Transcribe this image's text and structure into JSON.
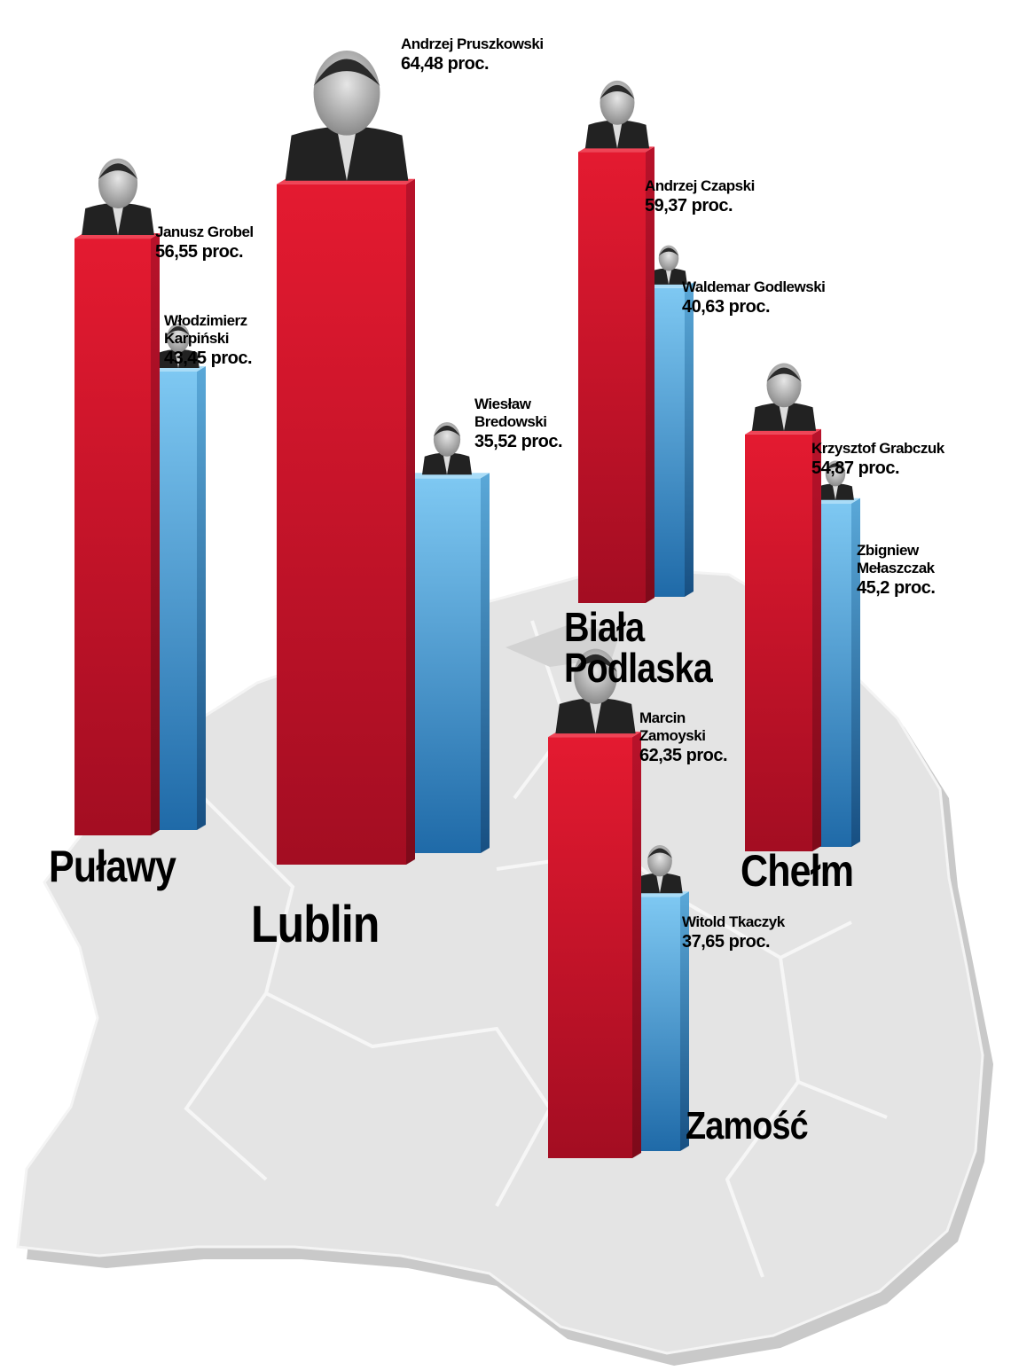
{
  "chart_data": {
    "type": "bar",
    "unit": "proc.",
    "colors": {
      "winner": "#c8102e",
      "runner_up": "#3a8fcc",
      "map": "#e3e3e3"
    },
    "cities": [
      {
        "name": "Puławy",
        "candidates": [
          {
            "name": "Janusz Grobel",
            "percent": 56.55,
            "label": "56,55 proc.",
            "color": "red"
          },
          {
            "name": "Włodzimierz Karpiński",
            "percent": 43.45,
            "label": "43,45 proc.",
            "color": "blue"
          }
        ]
      },
      {
        "name": "Lublin",
        "candidates": [
          {
            "name": "Andrzej Pruszkowski",
            "percent": 64.48,
            "label": "64,48 proc.",
            "color": "red"
          },
          {
            "name": "Wiesław Bredowski",
            "percent": 35.52,
            "label": "35,52 proc.",
            "color": "blue"
          }
        ]
      },
      {
        "name": "Biała Podlaska",
        "candidates": [
          {
            "name": "Andrzej Czapski",
            "percent": 59.37,
            "label": "59,37 proc.",
            "color": "red"
          },
          {
            "name": "Waldemar Godlewski",
            "percent": 40.63,
            "label": "40,63 proc.",
            "color": "blue"
          }
        ]
      },
      {
        "name": "Chełm",
        "candidates": [
          {
            "name": "Krzysztof Grabczuk",
            "percent": 54.87,
            "label": "54,87 proc.",
            "color": "red"
          },
          {
            "name": "Zbigniew Mełaszczak",
            "percent": 45.2,
            "label": "45,2 proc.",
            "color": "blue"
          }
        ]
      },
      {
        "name": "Zamość",
        "candidates": [
          {
            "name": "Marcin Zamoyski",
            "percent": 62.35,
            "label": "62,35 proc.",
            "color": "red"
          },
          {
            "name": "Witold Tkaczyk",
            "percent": 37.65,
            "label": "37,65 proc.",
            "color": "blue"
          }
        ]
      }
    ]
  }
}
